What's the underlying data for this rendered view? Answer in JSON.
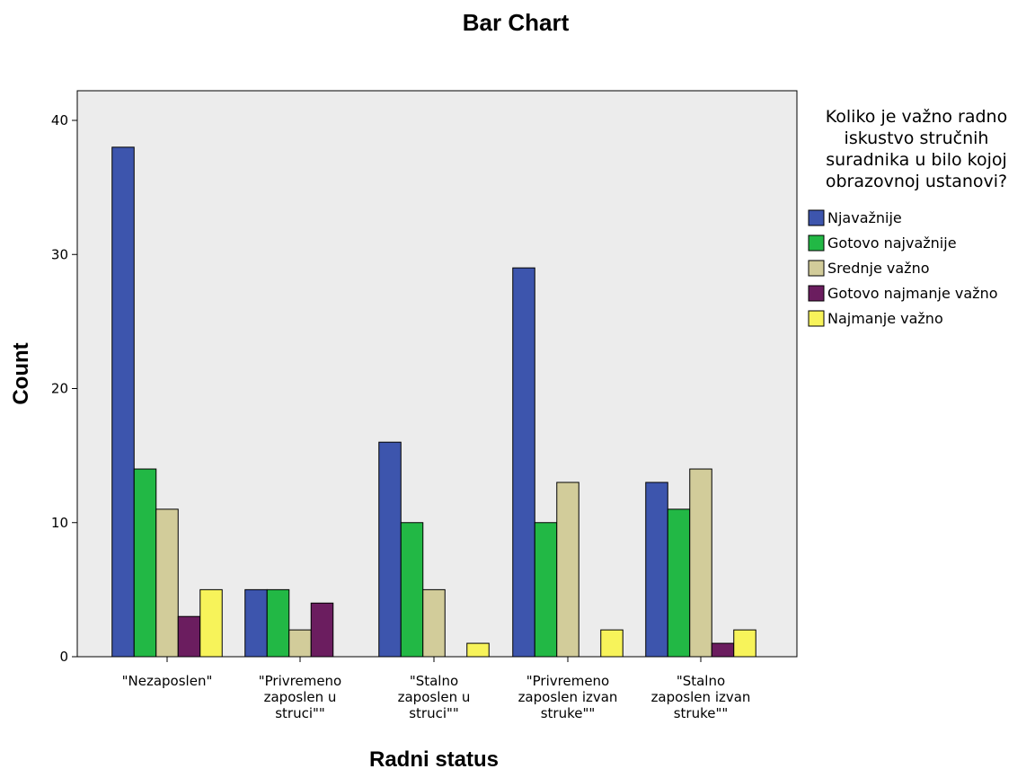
{
  "chart_data": {
    "type": "bar",
    "title": "Bar Chart",
    "xlabel": "Radni status",
    "ylabel": "Count",
    "ylim": [
      0,
      40
    ],
    "yticks": [
      0,
      10,
      20,
      30,
      40
    ],
    "grid": false,
    "legend_position": "right",
    "legend_title": [
      "Koliko je važno radno",
      "iskustvo stručnih",
      "suradnika u bilo kojoj",
      "obrazovnoj ustanovi?"
    ],
    "plot_background": "#ececec",
    "categories": [
      [
        "\"Nezaposlen\""
      ],
      [
        "\"Privremeno",
        "zaposlen u",
        "struci\"\""
      ],
      [
        "\"Stalno",
        "zaposlen u",
        "struci\"\""
      ],
      [
        "\"Privremeno",
        "zaposlen izvan",
        "struke\"\""
      ],
      [
        "\"Stalno",
        "zaposlen izvan",
        "struke\"\""
      ]
    ],
    "series": [
      {
        "name": "Njavažnije",
        "color": "#3d55ad",
        "values": [
          38,
          5,
          16,
          29,
          13
        ]
      },
      {
        "name": "Gotovo najvažnije",
        "color": "#22b845",
        "values": [
          14,
          5,
          10,
          10,
          11
        ]
      },
      {
        "name": "Srednje važno",
        "color": "#d2cc9a",
        "values": [
          11,
          2,
          5,
          13,
          14
        ]
      },
      {
        "name": "Gotovo najmanje važno",
        "color": "#6b1d5f",
        "values": [
          3,
          4,
          0,
          0,
          1
        ]
      },
      {
        "name": "Najmanje važno",
        "color": "#f7f35a",
        "values": [
          5,
          0,
          1,
          2,
          2
        ]
      }
    ]
  }
}
